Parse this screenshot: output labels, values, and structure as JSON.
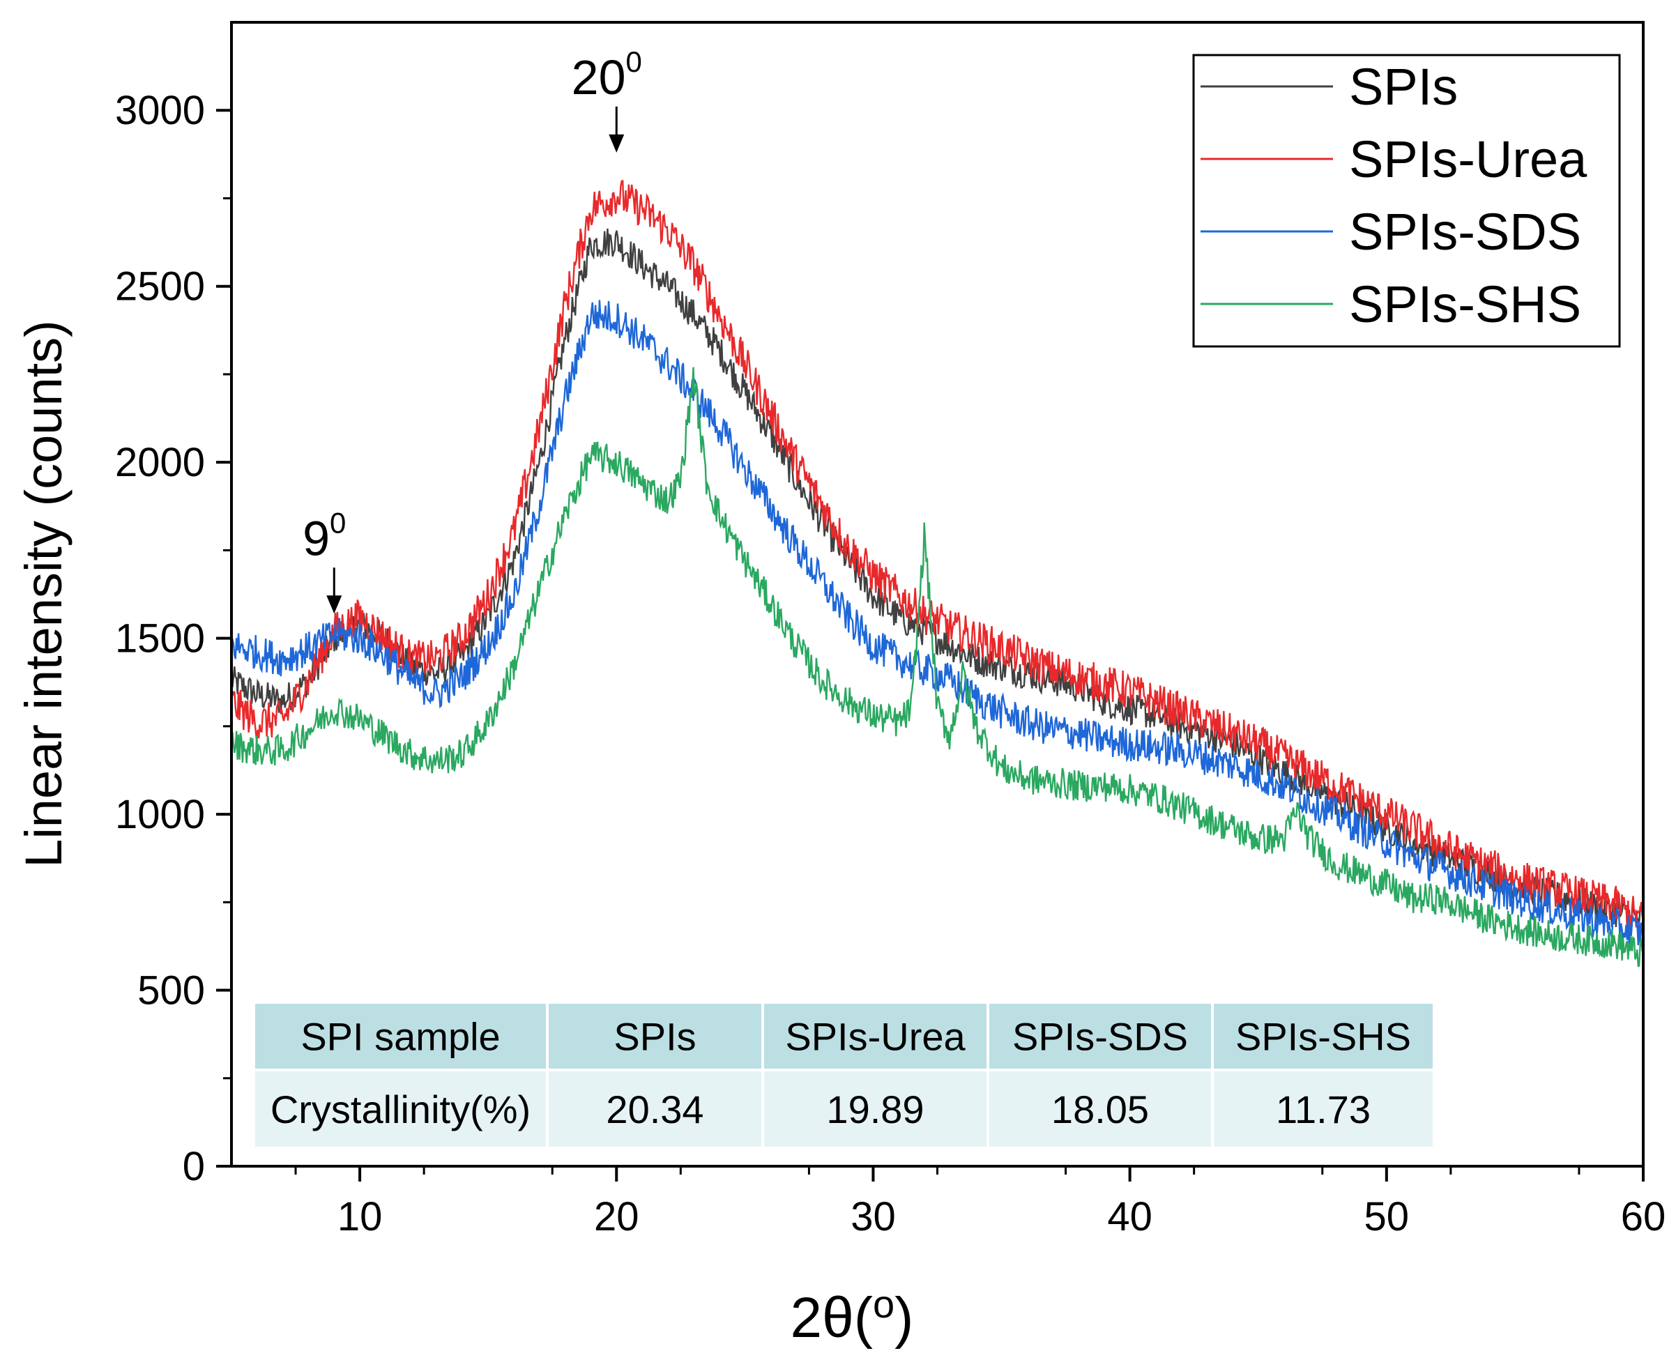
{
  "chart_data": {
    "type": "line",
    "title": "",
    "xlabel": "2θ(",
    "xlabel_unit": "o",
    "xlabel_close": ")",
    "ylabel": "Linear intensity (counts)",
    "xlim": [
      5,
      60
    ],
    "ylim": [
      0,
      3250
    ],
    "x_ticks": [
      10,
      20,
      30,
      40,
      50,
      60
    ],
    "y_ticks": [
      0,
      500,
      1000,
      1500,
      2000,
      2500,
      3000
    ],
    "annotations": [
      {
        "base": "9",
        "sup": "0",
        "x": 9,
        "y": 1570
      },
      {
        "base": "20",
        "sup": "0",
        "x": 20,
        "y": 2880
      }
    ],
    "series": [
      {
        "name": "SPIs",
        "color": "#404040",
        "noise": 45,
        "x": [
          5,
          6,
          7,
          8,
          9,
          10,
          11,
          12,
          13,
          14,
          15,
          16,
          17,
          18,
          19,
          20,
          21,
          22,
          23,
          24,
          25,
          26,
          27,
          28,
          29,
          30,
          31,
          32,
          33,
          34,
          35,
          36,
          37,
          38,
          39,
          40,
          41,
          42,
          43,
          44,
          45,
          46,
          47,
          48,
          49,
          50,
          51,
          52,
          53,
          54,
          55,
          56,
          57,
          58,
          59,
          60
        ],
        "y": [
          1380,
          1340,
          1320,
          1380,
          1500,
          1540,
          1500,
          1420,
          1400,
          1450,
          1560,
          1720,
          2000,
          2350,
          2620,
          2630,
          2560,
          2500,
          2420,
          2320,
          2200,
          2080,
          1950,
          1830,
          1720,
          1620,
          1560,
          1520,
          1480,
          1440,
          1420,
          1400,
          1380,
          1360,
          1320,
          1300,
          1280,
          1250,
          1230,
          1200,
          1160,
          1120,
          1080,
          1040,
          1000,
          960,
          920,
          890,
          860,
          830,
          800,
          780,
          760,
          740,
          720,
          700
        ]
      },
      {
        "name": "SPIs-Urea",
        "color": "#e8292b",
        "noise": 55,
        "x": [
          5,
          6,
          7,
          8,
          9,
          10,
          11,
          12,
          13,
          14,
          15,
          16,
          17,
          18,
          19,
          20,
          21,
          22,
          23,
          24,
          25,
          26,
          27,
          28,
          29,
          30,
          31,
          32,
          33,
          34,
          35,
          36,
          37,
          38,
          39,
          40,
          41,
          42,
          43,
          44,
          45,
          46,
          47,
          48,
          49,
          50,
          51,
          52,
          53,
          54,
          55,
          56,
          57,
          58,
          59,
          60
        ],
        "y": [
          1320,
          1260,
          1270,
          1380,
          1520,
          1560,
          1500,
          1440,
          1440,
          1500,
          1620,
          1800,
          2100,
          2450,
          2720,
          2760,
          2720,
          2660,
          2560,
          2420,
          2280,
          2140,
          2000,
          1880,
          1760,
          1680,
          1620,
          1570,
          1530,
          1500,
          1470,
          1440,
          1410,
          1390,
          1370,
          1350,
          1320,
          1290,
          1260,
          1230,
          1200,
          1160,
          1120,
          1080,
          1040,
          1000,
          960,
          920,
          880,
          850,
          820,
          800,
          780,
          760,
          740,
          700
        ]
      },
      {
        "name": "SPIs-SDS",
        "color": "#1e67d8",
        "noise": 50,
        "x": [
          5,
          6,
          7,
          8,
          9,
          10,
          11,
          12,
          13,
          14,
          15,
          16,
          17,
          18,
          19,
          20,
          21,
          22,
          23,
          24,
          25,
          26,
          27,
          28,
          29,
          30,
          31,
          32,
          33,
          34,
          35,
          36,
          37,
          38,
          39,
          40,
          41,
          42,
          43,
          44,
          45,
          46,
          47,
          48,
          49,
          50,
          51,
          52,
          53,
          54,
          55,
          56,
          57,
          58,
          59,
          60
        ],
        "y": [
          1480,
          1460,
          1440,
          1470,
          1510,
          1500,
          1450,
          1380,
          1340,
          1390,
          1480,
          1620,
          1880,
          2180,
          2420,
          2410,
          2350,
          2280,
          2200,
          2100,
          1980,
          1870,
          1760,
          1660,
          1560,
          1480,
          1440,
          1410,
          1380,
          1330,
          1290,
          1260,
          1240,
          1230,
          1210,
          1200,
          1190,
          1180,
          1160,
          1140,
          1110,
          1080,
          1040,
          1000,
          960,
          920,
          880,
          850,
          820,
          790,
          760,
          740,
          720,
          700,
          680,
          660
        ]
      },
      {
        "name": "SPIs-SHS",
        "color": "#2aa860",
        "noise": 45,
        "x": [
          5,
          6,
          7,
          8,
          9,
          10,
          11,
          12,
          13,
          14,
          15,
          16,
          17,
          18,
          19,
          20,
          21,
          22,
          22.5,
          23,
          23.5,
          24,
          25,
          26,
          27,
          28,
          29,
          30,
          31,
          31.5,
          32,
          32.5,
          33,
          33.5,
          34,
          35,
          36,
          37,
          38,
          39,
          40,
          41,
          42,
          43,
          44,
          45,
          46,
          46.5,
          47,
          48,
          49,
          50,
          51,
          52,
          53,
          54,
          55,
          56,
          57,
          58,
          59,
          60
        ],
        "y": [
          1200,
          1180,
          1180,
          1240,
          1300,
          1270,
          1220,
          1170,
          1150,
          1170,
          1260,
          1420,
          1640,
          1850,
          2020,
          2000,
          1940,
          1890,
          1950,
          2250,
          1950,
          1850,
          1720,
          1600,
          1480,
          1380,
          1320,
          1280,
          1260,
          1300,
          1800,
          1300,
          1220,
          1400,
          1250,
          1130,
          1100,
          1090,
          1080,
          1080,
          1070,
          1050,
          1020,
          990,
          960,
          930,
          930,
          1010,
          930,
          860,
          830,
          800,
          760,
          760,
          730,
          700,
          680,
          660,
          650,
          640,
          630,
          600
        ]
      }
    ]
  },
  "table": {
    "headers": [
      "SPI sample",
      "SPIs",
      "SPIs-Urea",
      "SPIs-SDS",
      "SPIs-SHS"
    ],
    "row_label": "Crystallinity(%)",
    "values": [
      "20.34",
      "19.89",
      "18.05",
      "11.73"
    ],
    "header_color": "#bcdfe3",
    "row_color": "#e6f3f4"
  }
}
